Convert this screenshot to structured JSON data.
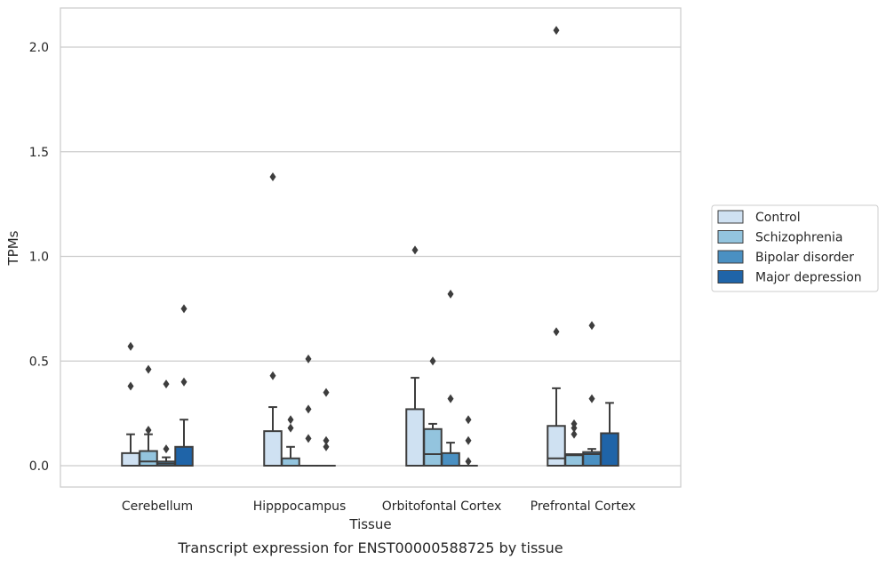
{
  "chart_data": {
    "type": "box",
    "title": "",
    "caption": "Transcript expression for ENST00000588725 by tissue",
    "xlabel": "Tissue",
    "ylabel": "TPMs",
    "ylim": [
      -0.1,
      2.2
    ],
    "yticks": [
      0.0,
      0.5,
      1.0,
      1.5,
      2.0
    ],
    "ytick_labels": [
      "0.0",
      "0.5",
      "1.0",
      "1.5",
      "2.0"
    ],
    "grid": "horizontal",
    "legend_position": "right",
    "categories": [
      "Cerebellum",
      "Hipppocampus",
      "Orbitofontal Cortex",
      "Prefrontal Cortex"
    ],
    "series": [
      {
        "name": "Control",
        "color": "#cfe1f2",
        "boxes": [
          {
            "q1": 0.0,
            "median": 0.0,
            "q3": 0.06,
            "whisker_low": 0.0,
            "whisker_high": 0.15,
            "outliers": [
              0.38,
              0.57
            ]
          },
          {
            "q1": 0.0,
            "median": 0.0,
            "q3": 0.165,
            "whisker_low": 0.0,
            "whisker_high": 0.28,
            "outliers": [
              0.43,
              1.38
            ]
          },
          {
            "q1": 0.0,
            "median": 0.0,
            "q3": 0.27,
            "whisker_low": 0.0,
            "whisker_high": 0.42,
            "outliers": [
              1.03
            ]
          },
          {
            "q1": 0.0,
            "median": 0.035,
            "q3": 0.19,
            "whisker_low": 0.0,
            "whisker_high": 0.37,
            "outliers": [
              0.64,
              2.08
            ]
          }
        ]
      },
      {
        "name": "Schizophrenia",
        "color": "#93c4de",
        "boxes": [
          {
            "q1": 0.0,
            "median": 0.02,
            "q3": 0.07,
            "whisker_low": 0.0,
            "whisker_high": 0.15,
            "outliers": [
              0.17,
              0.46
            ]
          },
          {
            "q1": 0.0,
            "median": 0.0,
            "q3": 0.035,
            "whisker_low": 0.0,
            "whisker_high": 0.09,
            "outliers": [
              0.18,
              0.22
            ]
          },
          {
            "q1": 0.0,
            "median": 0.055,
            "q3": 0.175,
            "whisker_low": 0.0,
            "whisker_high": 0.2,
            "outliers": [
              0.5
            ]
          },
          {
            "q1": 0.0,
            "median": 0.05,
            "q3": 0.055,
            "whisker_low": 0.0,
            "whisker_high": 0.055,
            "outliers": [
              0.15,
              0.18,
              0.2
            ]
          }
        ]
      },
      {
        "name": "Bipolar disorder",
        "color": "#4a90c2",
        "boxes": [
          {
            "q1": 0.0,
            "median": 0.01,
            "q3": 0.02,
            "whisker_low": 0.0,
            "whisker_high": 0.04,
            "outliers": [
              0.08,
              0.39
            ]
          },
          {
            "q1": 0.0,
            "median": 0.0,
            "q3": 0.0,
            "whisker_low": 0.0,
            "whisker_high": 0.0,
            "outliers": [
              0.13,
              0.27,
              0.51
            ]
          },
          {
            "q1": 0.0,
            "median": 0.0,
            "q3": 0.06,
            "whisker_low": 0.0,
            "whisker_high": 0.11,
            "outliers": [
              0.32,
              0.82
            ]
          },
          {
            "q1": 0.0,
            "median": 0.055,
            "q3": 0.065,
            "whisker_low": 0.0,
            "whisker_high": 0.08,
            "outliers": [
              0.32,
              0.67
            ]
          }
        ]
      },
      {
        "name": "Major depression",
        "color": "#1f64a8",
        "boxes": [
          {
            "q1": 0.0,
            "median": 0.0,
            "q3": 0.09,
            "whisker_low": 0.0,
            "whisker_high": 0.22,
            "outliers": [
              0.4,
              0.75
            ]
          },
          {
            "q1": 0.0,
            "median": 0.0,
            "q3": 0.0,
            "whisker_low": 0.0,
            "whisker_high": 0.0,
            "outliers": [
              0.09,
              0.12,
              0.35
            ]
          },
          {
            "q1": 0.0,
            "median": 0.0,
            "q3": 0.0,
            "whisker_low": 0.0,
            "whisker_high": 0.0,
            "outliers": [
              0.02,
              0.12,
              0.22
            ]
          },
          {
            "q1": 0.0,
            "median": 0.0,
            "q3": 0.155,
            "whisker_low": 0.0,
            "whisker_high": 0.3,
            "outliers": []
          }
        ]
      }
    ]
  }
}
